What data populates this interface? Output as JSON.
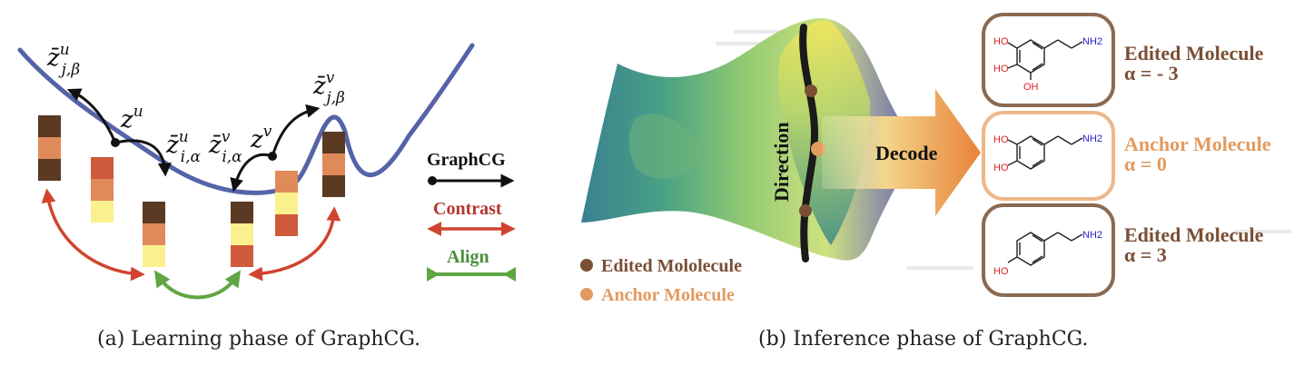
{
  "left_panel": {
    "caption": "(a) Learning phase of GraphCG.",
    "labels": {
      "z_u": "z",
      "z_u_sup": "u",
      "z_v": "z",
      "z_v_sup": "v",
      "zbar_ju_beta": "z̄",
      "zbar_ju_beta_sup": "u",
      "zbar_ju_beta_sub": "j,β",
      "zbar_iu_alpha": "z̄",
      "zbar_iu_alpha_sup": "u",
      "zbar_iu_alpha_sub": "i,α",
      "zbar_iv_alpha": "z̄",
      "zbar_iv_alpha_sup": "v",
      "zbar_iv_alpha_sub": "i,α",
      "zbar_jv_beta": "z̄",
      "zbar_jv_beta_sup": "v",
      "zbar_jv_beta_sub": "j,β"
    },
    "legend": [
      {
        "label": "GraphCG",
        "color": "#111111"
      },
      {
        "label": "Contrast",
        "color": "#b5362e"
      },
      {
        "label": "Align",
        "color": "#4a8f3a"
      }
    ],
    "colors": {
      "curve": "#5563a8",
      "dark_brown": "#5a3a22",
      "salmon": "#e08a5a",
      "red_orange": "#cf5a3c",
      "yellow": "#fbf08e",
      "contrast": "#d0442f",
      "align": "#5fa642"
    }
  },
  "right_panel": {
    "caption": "(b) Inference phase of GraphCG.",
    "direction_label": "Direction",
    "decode_label": "Decode",
    "legend": [
      {
        "label": "Edited Mololecule",
        "color": "#7a4f35"
      },
      {
        "label": "Anchor Molecule",
        "color": "#e39a5f"
      }
    ],
    "molecules": [
      {
        "title": "Edited Molecule",
        "alpha": "α = - 3",
        "color": "#7a4f35",
        "atoms": {
          "oh1": "HO",
          "oh2": "HO",
          "oh3": "OH",
          "nh2": "NH2"
        }
      },
      {
        "title": "Anchor Molecule",
        "alpha": "α = 0",
        "color": "#e39a5f",
        "atoms": {
          "oh1": "HO",
          "oh2": "HO",
          "nh2": "NH2"
        }
      },
      {
        "title": "Edited Molecule",
        "alpha": "α = 3",
        "color": "#7a4f35",
        "atoms": {
          "oh1": "HO",
          "nh2": "NH2"
        }
      }
    ]
  }
}
